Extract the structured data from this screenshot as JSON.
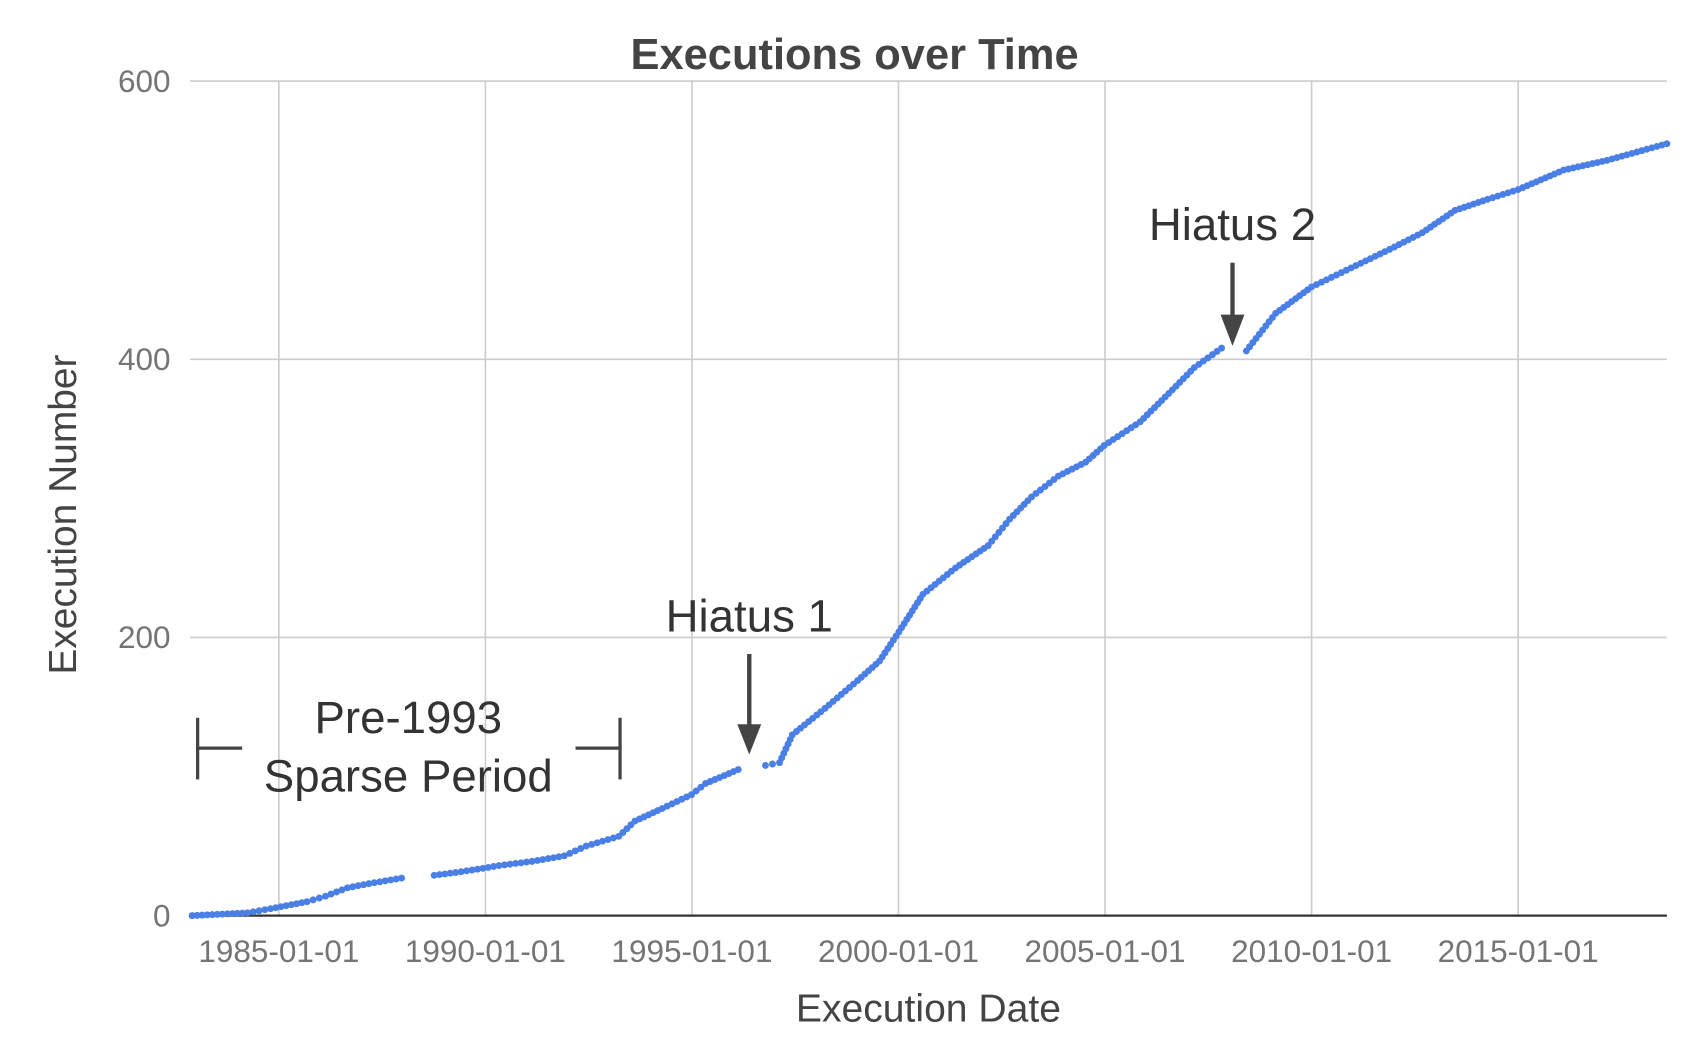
{
  "chart_data": {
    "type": "scatter",
    "title": "Executions over Time",
    "xlabel": "Execution Date",
    "ylabel": "Execution Number",
    "xlim": [
      1982.85,
      2018.6
    ],
    "ylim": [
      0,
      600
    ],
    "yticks": [
      "0",
      "200",
      "400",
      "600"
    ],
    "ytick_values": [
      0,
      200,
      400,
      600
    ],
    "xticks": [
      "1985-01-01",
      "1990-01-01",
      "1995-01-01",
      "2000-01-01",
      "2005-01-01",
      "2010-01-01",
      "2015-01-01"
    ],
    "xtick_values": [
      1985,
      1990,
      1995,
      2000,
      2005,
      2010,
      2015
    ],
    "grid": true,
    "color": "#4a7fe6",
    "points": [
      [
        1982.9,
        0
      ],
      [
        1984.24,
        2
      ],
      [
        1984.8,
        5
      ],
      [
        1985.68,
        10
      ],
      [
        1986.13,
        14
      ],
      [
        1986.66,
        20
      ],
      [
        1987.18,
        23
      ],
      [
        1987.97,
        27
      ],
      [
        1988.76,
        29
      ],
      [
        1989.28,
        31
      ],
      [
        1989.94,
        34
      ],
      [
        1990.33,
        36
      ],
      [
        1991.13,
        39
      ],
      [
        1991.91,
        43
      ],
      [
        1992.44,
        50
      ],
      [
        1993.23,
        57
      ],
      [
        1993.62,
        68
      ],
      [
        1994.28,
        77
      ],
      [
        1994.99,
        87
      ],
      [
        1995.33,
        95
      ],
      [
        1996.12,
        105
      ],
      [
        1996.78,
        108
      ],
      [
        1997.12,
        110
      ],
      [
        1997.43,
        130
      ],
      [
        1998.22,
        149
      ],
      [
        1999.01,
        169
      ],
      [
        1999.54,
        183
      ],
      [
        2000.01,
        204
      ],
      [
        2000.59,
        231
      ],
      [
        2001.38,
        250
      ],
      [
        2002.17,
        266
      ],
      [
        2002.69,
        285
      ],
      [
        2003.22,
        301
      ],
      [
        2003.87,
        316
      ],
      [
        2004.53,
        326
      ],
      [
        2004.98,
        338
      ],
      [
        2005.85,
        355
      ],
      [
        2006.63,
        378
      ],
      [
        2007.16,
        394
      ],
      [
        2007.82,
        408
      ],
      [
        2008.42,
        406
      ],
      [
        2009.13,
        433
      ],
      [
        2010.0,
        452
      ],
      [
        2010.84,
        464
      ],
      [
        2011.89,
        479
      ],
      [
        2012.68,
        491
      ],
      [
        2013.47,
        507
      ],
      [
        2014.26,
        515
      ],
      [
        2015.0,
        522
      ],
      [
        2016.1,
        536
      ],
      [
        2017.15,
        543
      ],
      [
        2018.6,
        555
      ]
    ],
    "gaps": [
      [
        1987.97,
        1988.76
      ],
      [
        1996.12,
        1996.78
      ],
      [
        2007.82,
        2008.42
      ]
    ],
    "annotations": {
      "hiatus1": "Hiatus 1",
      "hiatus2": "Hiatus 2",
      "sparse_line1": "Pre-1993",
      "sparse_line2": "Sparse Period"
    }
  }
}
